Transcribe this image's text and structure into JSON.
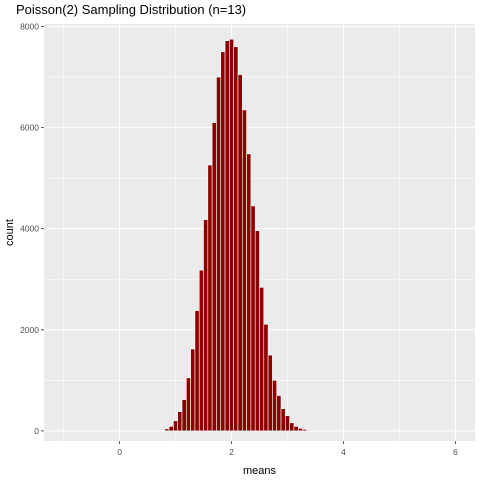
{
  "chart_data": {
    "type": "bar",
    "title": "Poisson(2) Sampling Distribution (n=13)",
    "xlabel": "means",
    "ylabel": "count",
    "xlim": [
      -1.35,
      6.35
    ],
    "ylim": [
      -200,
      8050
    ],
    "x_ticks": [
      0,
      2,
      4,
      6
    ],
    "y_ticks": [
      0,
      2000,
      4000,
      6000,
      8000
    ],
    "x_tick_labels": [
      "0",
      "2",
      "4",
      "6"
    ],
    "y_tick_labels": [
      "0",
      "2000",
      "4000",
      "6000",
      "8000"
    ],
    "bar_width": 0.0769,
    "grid": true,
    "colors": {
      "panel": "#ebebeb",
      "grid": "#ffffff",
      "bar_fill": "#8b0000",
      "bar_outline": "#ffffff"
    },
    "x": [
      0.846,
      0.923,
      1.0,
      1.077,
      1.154,
      1.231,
      1.308,
      1.385,
      1.462,
      1.538,
      1.615,
      1.692,
      1.769,
      1.846,
      1.923,
      2.0,
      2.077,
      2.154,
      2.231,
      2.308,
      2.385,
      2.462,
      2.538,
      2.615,
      2.692,
      2.769,
      2.846,
      2.923,
      3.0,
      3.077,
      3.154,
      3.231,
      3.308,
      3.385
    ],
    "values": [
      40,
      90,
      200,
      380,
      620,
      1050,
      1620,
      2380,
      3180,
      4180,
      5260,
      6100,
      7000,
      7500,
      7720,
      7750,
      7600,
      7050,
      6350,
      5480,
      4450,
      3960,
      2840,
      2110,
      1500,
      1000,
      700,
      440,
      300,
      160,
      90,
      50,
      30,
      15
    ]
  }
}
